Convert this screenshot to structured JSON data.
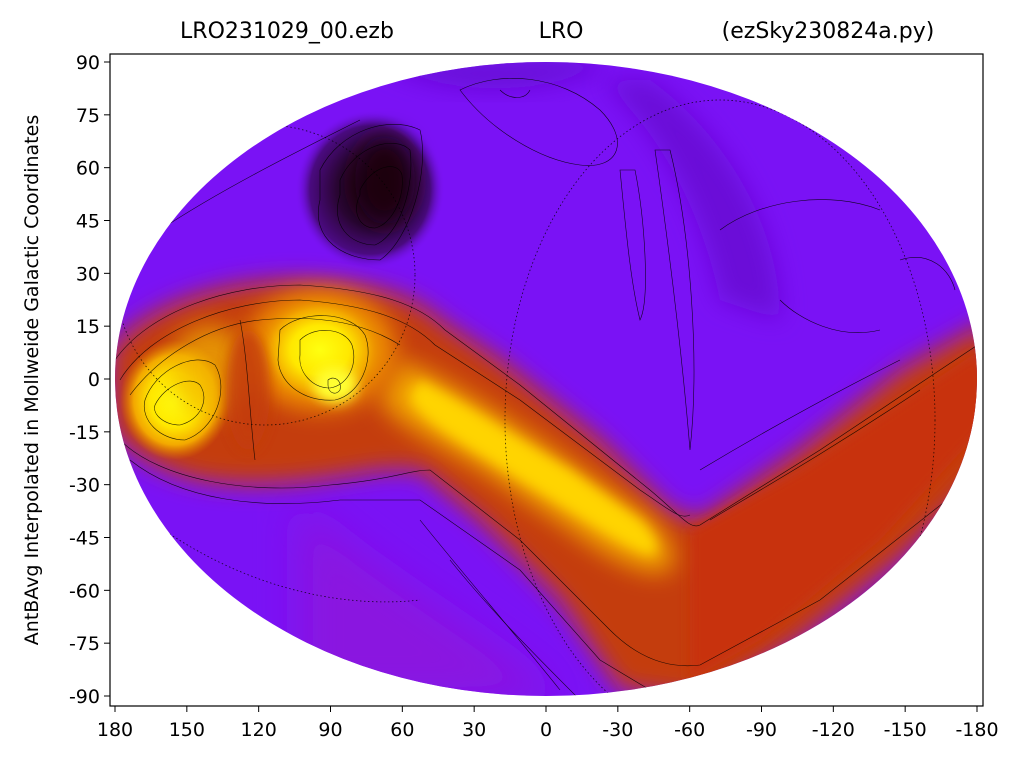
{
  "chart_data": {
    "type": "heatmap",
    "projection": "Mollweide",
    "title_left": "LRO231029_00.ezb",
    "title_center": "LRO",
    "title_right": "(ezSky230824a.py)",
    "xlabel": "",
    "ylabel": "AntBAvg Interpolated in Mollweide Galactic Coordinates",
    "xlim": [
      180,
      -180
    ],
    "ylim": [
      -90,
      90
    ],
    "x_ticks": [
      "180",
      "150",
      "120",
      "90",
      "60",
      "30",
      "0",
      "-30",
      "-60",
      "-90",
      "-120",
      "-150",
      "-180"
    ],
    "y_ticks": [
      "90",
      "75",
      "60",
      "45",
      "30",
      "15",
      "0",
      "-15",
      "-30",
      "-45",
      "-60",
      "-75",
      "-90"
    ],
    "colormap": "gnuplot",
    "colors": {
      "low": "#1a0010",
      "background": "#7a12f5",
      "mid": "#cc3a10",
      "high": "#ffff00"
    },
    "features": [
      {
        "name": "galactic plane ridge",
        "level": "high"
      },
      {
        "name": "bright peak",
        "x": 88,
        "y": 5,
        "level": "highest"
      },
      {
        "name": "bright peak",
        "x": 150,
        "y": -6,
        "level": "high"
      },
      {
        "name": "dark minimum",
        "x": 72,
        "y": 52,
        "level": "lowest"
      }
    ],
    "contours": true,
    "grid": "dotted reference circles"
  }
}
